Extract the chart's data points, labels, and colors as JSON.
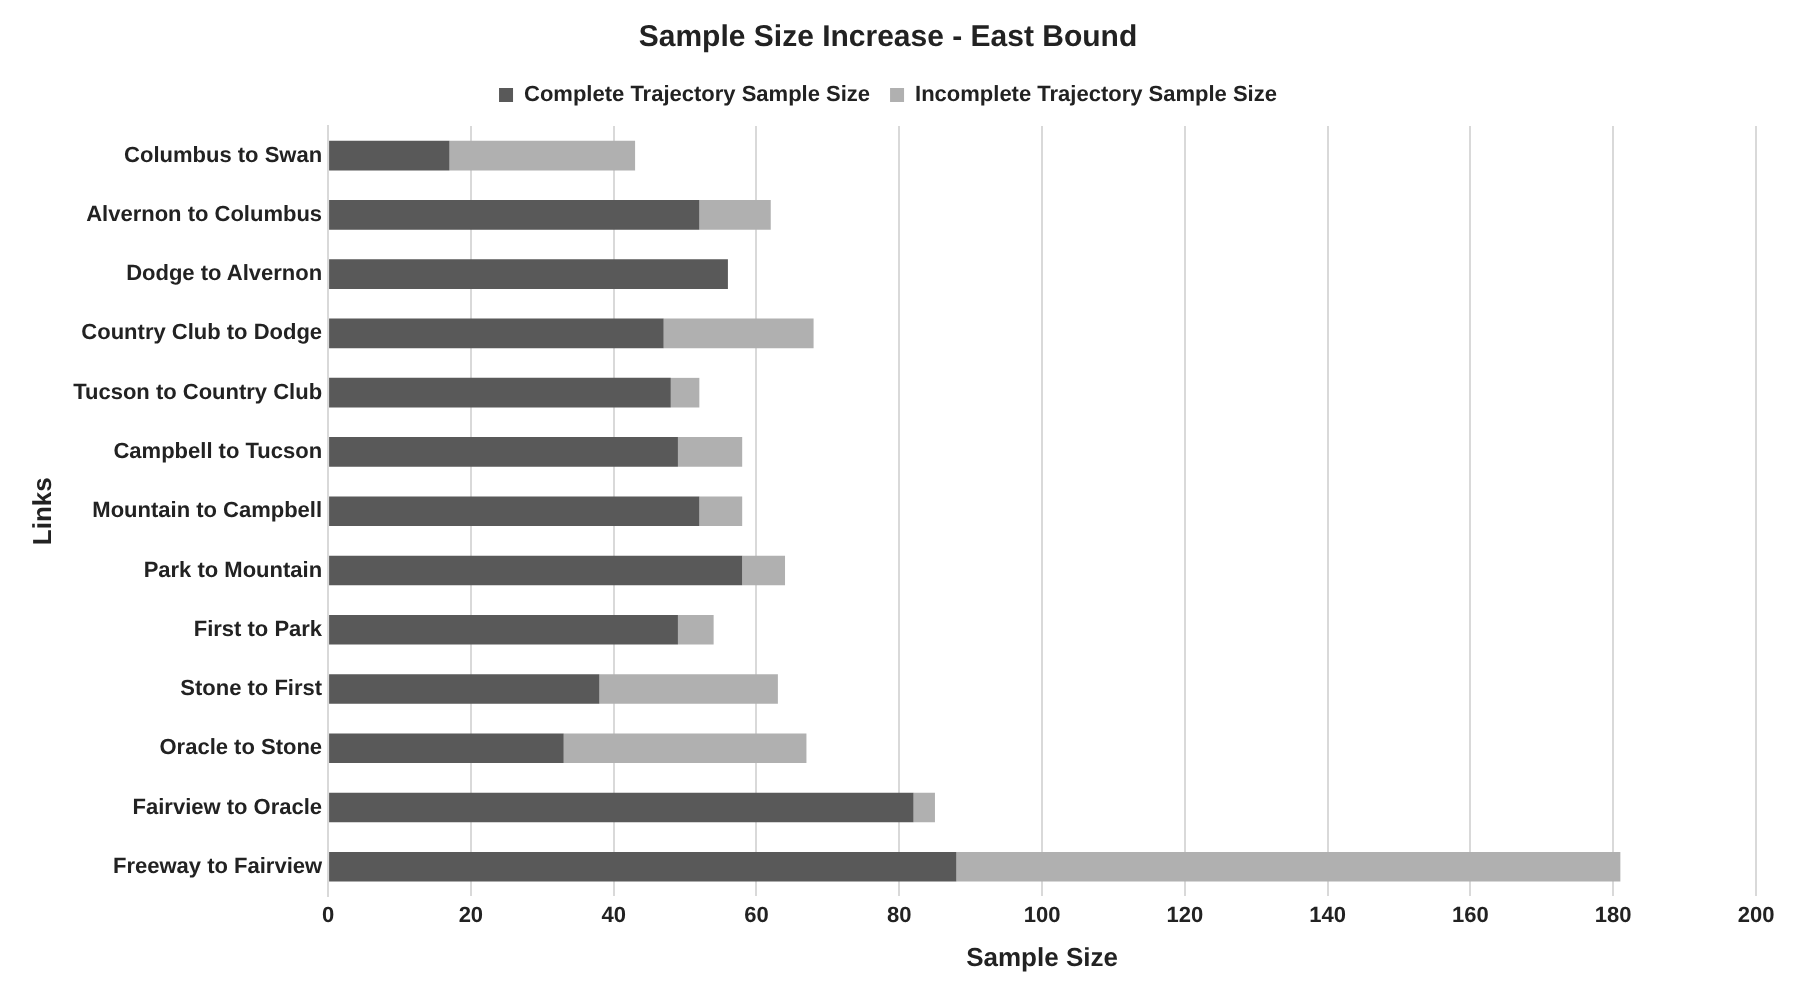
{
  "chart_data": {
    "type": "bar",
    "orientation": "horizontal",
    "stacked": true,
    "title": "Sample Size Increase - East Bound",
    "xlabel": "Sample Size",
    "ylabel": "Links",
    "categories": [
      "Columbus to Swan",
      "Alvernon to Columbus",
      "Dodge to Alvernon",
      "Country Club to Dodge",
      "Tucson to Country Club",
      "Campbell to Tucson",
      "Mountain to Campbell",
      "Park to Mountain",
      "First to Park",
      "Stone to First",
      "Oracle to Stone",
      "Fairview to Oracle",
      "Freeway to Fairview"
    ],
    "series": [
      {
        "name": "Complete Trajectory Sample Size",
        "color": "#595959",
        "values": [
          17,
          52,
          56,
          47,
          48,
          49,
          52,
          58,
          49,
          38,
          33,
          82,
          88
        ]
      },
      {
        "name": "Incomplete Trajectory Sample Size",
        "color": "#b0b0b0",
        "values": [
          26,
          10,
          0,
          21,
          4,
          9,
          6,
          6,
          5,
          25,
          34,
          3,
          93
        ]
      }
    ],
    "xlim": [
      0,
      200
    ],
    "xticks": [
      0,
      20,
      40,
      60,
      80,
      100,
      120,
      140,
      160,
      180,
      200
    ],
    "grid": "x",
    "legend": "top"
  }
}
